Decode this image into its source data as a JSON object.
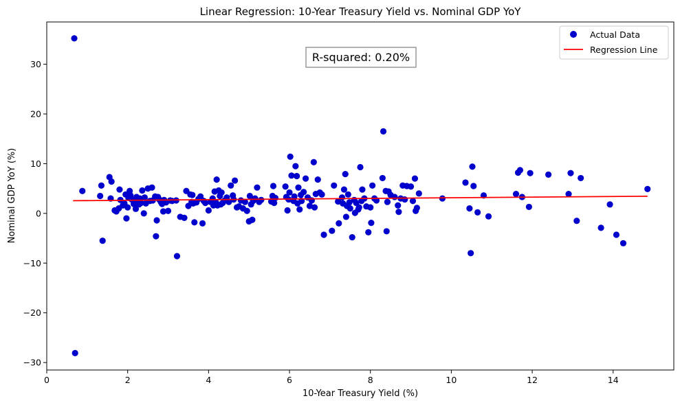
{
  "chart_data": {
    "type": "scatter",
    "title": "Linear Regression: 10-Year Treasury Yield vs. Nominal GDP YoY",
    "xlabel": "10-Year Treasury Yield (%)",
    "ylabel": "Nominal GDP YoY (%)",
    "xlim": [
      0,
      15.5
    ],
    "ylim": [
      -31.5,
      38.5
    ],
    "xticks": [
      0,
      2,
      4,
      6,
      8,
      10,
      12,
      14
    ],
    "yticks": [
      -30,
      -20,
      -10,
      0,
      10,
      20,
      30
    ],
    "xtick_labels": [
      "0",
      "2",
      "4",
      "6",
      "8",
      "10",
      "12",
      "14"
    ],
    "ytick_labels": [
      "−30",
      "−20",
      "−10",
      "0",
      "10",
      "20",
      "30"
    ],
    "annotation": "R-squared: 0.20%",
    "legend": {
      "position": "top-right",
      "entries": [
        "Actual Data",
        "Regression Line"
      ]
    },
    "grid": false,
    "colors": {
      "points": "#0000cc",
      "line": "#ff0000"
    },
    "series": [
      {
        "name": "Actual Data",
        "kind": "scatter",
        "points": [
          [
            0.68,
            35.2
          ],
          [
            0.7,
            -28.1
          ],
          [
            0.88,
            4.5
          ],
          [
            1.32,
            3.5
          ],
          [
            1.35,
            5.6
          ],
          [
            1.38,
            -5.5
          ],
          [
            1.55,
            7.3
          ],
          [
            1.58,
            3.0
          ],
          [
            1.6,
            6.4
          ],
          [
            1.68,
            0.6
          ],
          [
            1.72,
            0.4
          ],
          [
            1.78,
            1.0
          ],
          [
            1.8,
            4.8
          ],
          [
            1.82,
            2.7
          ],
          [
            1.88,
            1.6
          ],
          [
            1.92,
            2.0
          ],
          [
            1.95,
            3.8
          ],
          [
            1.97,
            -1.0
          ],
          [
            2.0,
            1.2
          ],
          [
            2.02,
            3.1
          ],
          [
            2.05,
            4.5
          ],
          [
            2.07,
            3.6
          ],
          [
            2.1,
            2.8
          ],
          [
            2.15,
            1.9
          ],
          [
            2.18,
            2.4
          ],
          [
            2.2,
            0.9
          ],
          [
            2.22,
            3.3
          ],
          [
            2.25,
            2.9
          ],
          [
            2.28,
            1.8
          ],
          [
            2.3,
            3.0
          ],
          [
            2.33,
            2.1
          ],
          [
            2.36,
            4.6
          ],
          [
            2.4,
            0.0
          ],
          [
            2.42,
            3.2
          ],
          [
            2.45,
            2.0
          ],
          [
            2.5,
            5.0
          ],
          [
            2.55,
            2.5
          ],
          [
            2.6,
            5.2
          ],
          [
            2.62,
            2.6
          ],
          [
            2.68,
            3.4
          ],
          [
            2.7,
            -4.6
          ],
          [
            2.72,
            -1.4
          ],
          [
            2.75,
            3.3
          ],
          [
            2.78,
            2.8
          ],
          [
            2.82,
            2.3
          ],
          [
            2.85,
            1.9
          ],
          [
            2.88,
            0.4
          ],
          [
            2.9,
            2.7
          ],
          [
            2.95,
            2.2
          ],
          [
            3.0,
            0.5
          ],
          [
            3.05,
            2.6
          ],
          [
            3.1,
            2.5
          ],
          [
            3.2,
            2.6
          ],
          [
            3.22,
            -8.6
          ],
          [
            3.3,
            -0.7
          ],
          [
            3.4,
            -0.9
          ],
          [
            3.45,
            4.5
          ],
          [
            3.5,
            1.5
          ],
          [
            3.55,
            3.8
          ],
          [
            3.58,
            2.3
          ],
          [
            3.6,
            3.7
          ],
          [
            3.62,
            2.0
          ],
          [
            3.65,
            -1.8
          ],
          [
            3.7,
            2.2
          ],
          [
            3.75,
            2.9
          ],
          [
            3.8,
            3.4
          ],
          [
            3.85,
            -2.0
          ],
          [
            3.88,
            2.5
          ],
          [
            3.92,
            2.1
          ],
          [
            4.0,
            0.6
          ],
          [
            4.05,
            2.3
          ],
          [
            4.1,
            3.0
          ],
          [
            4.12,
            1.6
          ],
          [
            4.15,
            4.4
          ],
          [
            4.18,
            2.2
          ],
          [
            4.2,
            6.8
          ],
          [
            4.22,
            1.6
          ],
          [
            4.25,
            4.6
          ],
          [
            4.28,
            3.5
          ],
          [
            4.3,
            1.8
          ],
          [
            4.32,
            4.2
          ],
          [
            4.35,
            2.1
          ],
          [
            4.4,
            2.6
          ],
          [
            4.45,
            3.2
          ],
          [
            4.5,
            2.3
          ],
          [
            4.55,
            5.6
          ],
          [
            4.6,
            3.6
          ],
          [
            4.62,
            2.8
          ],
          [
            4.65,
            6.6
          ],
          [
            4.7,
            1.2
          ],
          [
            4.75,
            1.4
          ],
          [
            4.8,
            2.6
          ],
          [
            4.85,
            1.0
          ],
          [
            4.9,
            2.3
          ],
          [
            4.95,
            0.5
          ],
          [
            5.0,
            -1.6
          ],
          [
            5.02,
            3.5
          ],
          [
            5.05,
            1.8
          ],
          [
            5.08,
            -1.3
          ],
          [
            5.1,
            2.5
          ],
          [
            5.15,
            3.0
          ],
          [
            5.2,
            5.2
          ],
          [
            5.25,
            2.3
          ],
          [
            5.3,
            2.7
          ],
          [
            5.55,
            2.4
          ],
          [
            5.58,
            3.5
          ],
          [
            5.6,
            5.5
          ],
          [
            5.62,
            2.1
          ],
          [
            5.65,
            3.1
          ],
          [
            5.9,
            5.4
          ],
          [
            5.92,
            3.3
          ],
          [
            5.95,
            0.6
          ],
          [
            5.98,
            2.8
          ],
          [
            6.0,
            4.2
          ],
          [
            6.02,
            11.4
          ],
          [
            6.05,
            7.6
          ],
          [
            6.1,
            2.5
          ],
          [
            6.12,
            3.4
          ],
          [
            6.15,
            9.5
          ],
          [
            6.18,
            7.5
          ],
          [
            6.2,
            2.0
          ],
          [
            6.22,
            5.2
          ],
          [
            6.25,
            0.8
          ],
          [
            6.28,
            3.7
          ],
          [
            6.3,
            2.5
          ],
          [
            6.35,
            4.3
          ],
          [
            6.4,
            7.0
          ],
          [
            6.45,
            3.2
          ],
          [
            6.5,
            1.5
          ],
          [
            6.55,
            2.6
          ],
          [
            6.6,
            10.3
          ],
          [
            6.62,
            1.2
          ],
          [
            6.65,
            3.9
          ],
          [
            6.7,
            6.8
          ],
          [
            6.75,
            4.2
          ],
          [
            6.8,
            3.8
          ],
          [
            6.85,
            -4.3
          ],
          [
            7.05,
            -3.5
          ],
          [
            7.1,
            5.6
          ],
          [
            7.2,
            2.4
          ],
          [
            7.22,
            -2.0
          ],
          [
            7.3,
            3.2
          ],
          [
            7.32,
            2.0
          ],
          [
            7.35,
            4.8
          ],
          [
            7.38,
            7.9
          ],
          [
            7.4,
            -0.7
          ],
          [
            7.42,
            1.5
          ],
          [
            7.45,
            3.8
          ],
          [
            7.48,
            2.2
          ],
          [
            7.5,
            1.0
          ],
          [
            7.55,
            -4.8
          ],
          [
            7.6,
            2.7
          ],
          [
            7.62,
            0.1
          ],
          [
            7.65,
            2.1
          ],
          [
            7.7,
            0.8
          ],
          [
            7.72,
            1.2
          ],
          [
            7.75,
            9.3
          ],
          [
            7.78,
            2.5
          ],
          [
            7.8,
            4.8
          ],
          [
            7.85,
            3.0
          ],
          [
            7.9,
            1.4
          ],
          [
            7.95,
            -3.8
          ],
          [
            8.0,
            1.2
          ],
          [
            8.02,
            -1.9
          ],
          [
            8.05,
            5.6
          ],
          [
            8.1,
            3.0
          ],
          [
            8.15,
            2.6
          ],
          [
            8.3,
            7.1
          ],
          [
            8.32,
            16.5
          ],
          [
            8.38,
            4.5
          ],
          [
            8.4,
            -3.6
          ],
          [
            8.42,
            2.3
          ],
          [
            8.45,
            4.4
          ],
          [
            8.5,
            3.7
          ],
          [
            8.6,
            3.3
          ],
          [
            8.68,
            1.6
          ],
          [
            8.7,
            0.3
          ],
          [
            8.75,
            3.0
          ],
          [
            8.8,
            5.6
          ],
          [
            8.85,
            2.8
          ],
          [
            8.9,
            5.5
          ],
          [
            9.0,
            5.4
          ],
          [
            9.05,
            2.5
          ],
          [
            9.1,
            7.0
          ],
          [
            9.12,
            0.5
          ],
          [
            9.15,
            1.1
          ],
          [
            9.2,
            4.0
          ],
          [
            9.78,
            3.0
          ],
          [
            10.35,
            6.2
          ],
          [
            10.45,
            1.0
          ],
          [
            10.48,
            -8.0
          ],
          [
            10.52,
            9.4
          ],
          [
            10.55,
            5.5
          ],
          [
            10.65,
            0.2
          ],
          [
            10.8,
            3.6
          ],
          [
            10.92,
            -0.6
          ],
          [
            11.6,
            3.9
          ],
          [
            11.65,
            8.2
          ],
          [
            11.7,
            8.7
          ],
          [
            11.75,
            3.3
          ],
          [
            11.92,
            1.3
          ],
          [
            11.95,
            8.1
          ],
          [
            12.4,
            7.8
          ],
          [
            12.9,
            3.9
          ],
          [
            12.95,
            8.1
          ],
          [
            13.1,
            -1.5
          ],
          [
            13.2,
            7.1
          ],
          [
            13.7,
            -2.9
          ],
          [
            13.92,
            1.8
          ],
          [
            14.08,
            -4.3
          ],
          [
            14.25,
            -6.0
          ],
          [
            14.85,
            4.9
          ]
        ]
      },
      {
        "name": "Regression Line",
        "kind": "line",
        "x": [
          0.65,
          14.85
        ],
        "y": [
          2.55,
          3.45
        ]
      }
    ]
  }
}
